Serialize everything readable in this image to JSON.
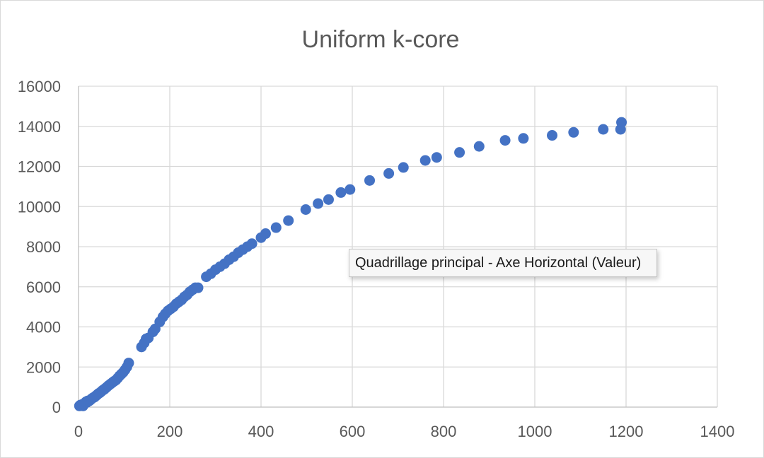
{
  "chart_data": {
    "type": "scatter",
    "title": "Uniform k-core",
    "xlabel": "",
    "ylabel": "",
    "xlim": [
      0,
      1400
    ],
    "ylim": [
      0,
      16000
    ],
    "x_ticks": [
      0,
      200,
      400,
      600,
      800,
      1000,
      1200,
      1400
    ],
    "y_ticks": [
      0,
      2000,
      4000,
      6000,
      8000,
      10000,
      12000,
      14000,
      16000
    ],
    "grid": "major x and y",
    "legend": "none",
    "marker_color": "#4472c4",
    "series": [
      {
        "points": [
          [
            2,
            60
          ],
          [
            4,
            100
          ],
          [
            6,
            80
          ],
          [
            8,
            130
          ],
          [
            10,
            60
          ],
          [
            12,
            150
          ],
          [
            14,
            200
          ],
          [
            16,
            260
          ],
          [
            18,
            230
          ],
          [
            20,
            310
          ],
          [
            23,
            300
          ],
          [
            26,
            360
          ],
          [
            29,
            420
          ],
          [
            32,
            470
          ],
          [
            35,
            500
          ],
          [
            38,
            560
          ],
          [
            41,
            620
          ],
          [
            44,
            680
          ],
          [
            47,
            720
          ],
          [
            50,
            780
          ],
          [
            53,
            840
          ],
          [
            56,
            880
          ],
          [
            59,
            940
          ],
          [
            62,
            1000
          ],
          [
            66,
            1080
          ],
          [
            70,
            1150
          ],
          [
            74,
            1220
          ],
          [
            78,
            1290
          ],
          [
            82,
            1350
          ],
          [
            86,
            1450
          ],
          [
            90,
            1560
          ],
          [
            94,
            1650
          ],
          [
            98,
            1740
          ],
          [
            102,
            1860
          ],
          [
            106,
            2000
          ],
          [
            110,
            2200
          ],
          [
            138,
            3000
          ],
          [
            144,
            3200
          ],
          [
            148,
            3400
          ],
          [
            153,
            3450
          ],
          [
            163,
            3750
          ],
          [
            168,
            3900
          ],
          [
            178,
            4250
          ],
          [
            185,
            4500
          ],
          [
            190,
            4650
          ],
          [
            196,
            4800
          ],
          [
            202,
            4900
          ],
          [
            208,
            5000
          ],
          [
            214,
            5150
          ],
          [
            220,
            5250
          ],
          [
            226,
            5350
          ],
          [
            232,
            5500
          ],
          [
            238,
            5600
          ],
          [
            244,
            5750
          ],
          [
            250,
            5850
          ],
          [
            256,
            5950
          ],
          [
            262,
            5950
          ],
          [
            280,
            6500
          ],
          [
            290,
            6650
          ],
          [
            300,
            6850
          ],
          [
            310,
            7000
          ],
          [
            320,
            7150
          ],
          [
            330,
            7350
          ],
          [
            340,
            7500
          ],
          [
            350,
            7700
          ],
          [
            360,
            7850
          ],
          [
            370,
            8000
          ],
          [
            380,
            8150
          ],
          [
            400,
            8450
          ],
          [
            410,
            8650
          ],
          [
            433,
            8950
          ],
          [
            460,
            9300
          ],
          [
            498,
            9850
          ],
          [
            525,
            10150
          ],
          [
            548,
            10350
          ],
          [
            575,
            10700
          ],
          [
            595,
            10850
          ],
          [
            638,
            11300
          ],
          [
            680,
            11650
          ],
          [
            712,
            11950
          ],
          [
            760,
            12300
          ],
          [
            785,
            12450
          ],
          [
            835,
            12700
          ],
          [
            878,
            13000
          ],
          [
            935,
            13300
          ],
          [
            975,
            13400
          ],
          [
            1038,
            13550
          ],
          [
            1085,
            13700
          ],
          [
            1150,
            13850
          ],
          [
            1190,
            14200
          ],
          [
            1188,
            13850
          ]
        ]
      }
    ]
  },
  "tooltip": {
    "text": "Quadrillage principal - Axe Horizontal (Valeur)"
  }
}
